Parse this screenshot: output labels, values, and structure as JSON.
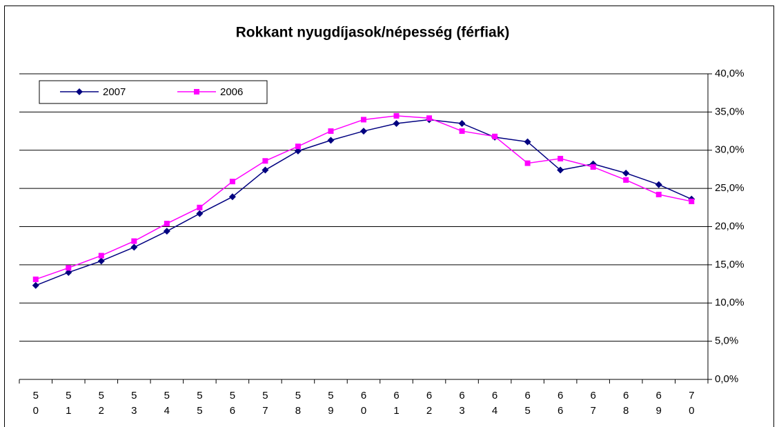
{
  "chart_data": {
    "type": "line",
    "title": "Rokkant nyugdíjasok/népesség (férfiak)",
    "categories": [
      "50",
      "51",
      "52",
      "53",
      "54",
      "55",
      "56",
      "57",
      "58",
      "59",
      "60",
      "61",
      "62",
      "63",
      "64",
      "65",
      "66",
      "67",
      "68",
      "69",
      "70"
    ],
    "series": [
      {
        "name": "2007",
        "color": "#000080",
        "marker": "diamond",
        "values": [
          12.3,
          14.0,
          15.5,
          17.3,
          19.4,
          21.7,
          23.9,
          27.4,
          29.9,
          31.3,
          32.5,
          33.5,
          34.0,
          33.5,
          31.7,
          31.1,
          27.4,
          28.2,
          27.0,
          25.5,
          23.6
        ]
      },
      {
        "name": "2006",
        "color": "#ff00ff",
        "marker": "square",
        "values": [
          13.1,
          14.6,
          16.2,
          18.1,
          20.4,
          22.5,
          25.9,
          28.6,
          30.5,
          32.5,
          34.0,
          34.5,
          34.2,
          32.5,
          31.8,
          28.3,
          28.9,
          27.8,
          26.1,
          24.2,
          23.3
        ]
      }
    ],
    "ylim": [
      0,
      40
    ],
    "yticks": [
      {
        "value": 0,
        "label": "0,0%"
      },
      {
        "value": 5,
        "label": "5,0%"
      },
      {
        "value": 10,
        "label": "10,0%"
      },
      {
        "value": 15,
        "label": "15,0%"
      },
      {
        "value": 20,
        "label": "20,0%"
      },
      {
        "value": 25,
        "label": "25,0%"
      },
      {
        "value": 30,
        "label": "30,0%"
      },
      {
        "value": 35,
        "label": "35,0%"
      },
      {
        "value": 40,
        "label": "40,0%"
      }
    ],
    "y_axis_side": "right",
    "grid": true,
    "legend": "top-left"
  }
}
